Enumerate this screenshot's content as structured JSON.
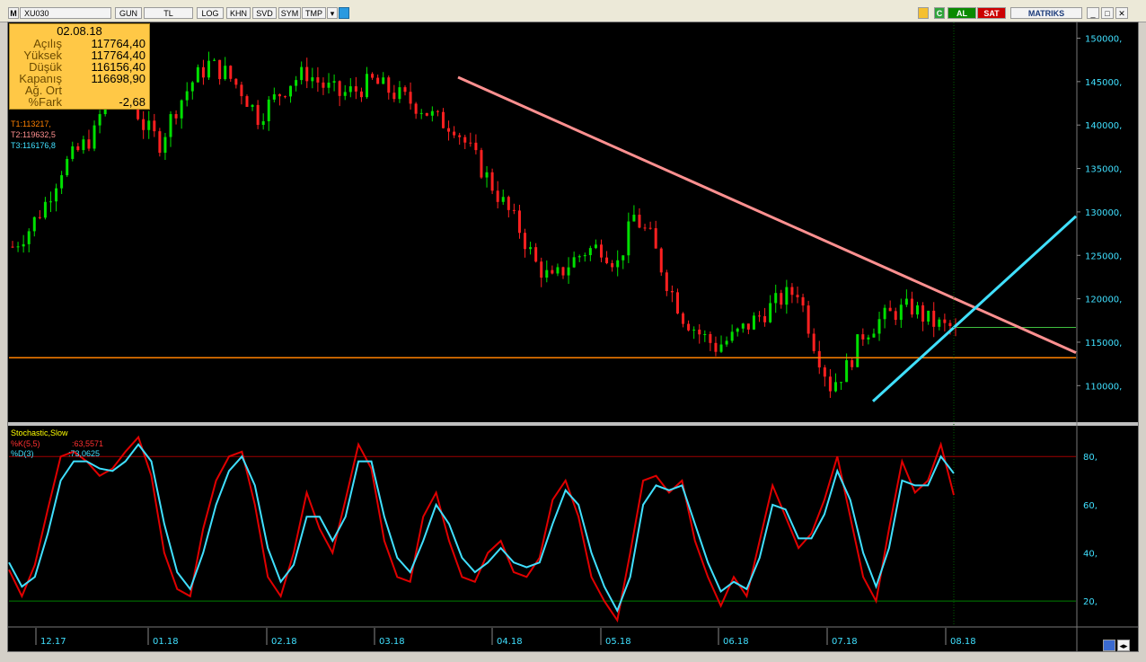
{
  "toolbar": {
    "app_logo": "M",
    "symbol": "XU030",
    "buttons": [
      "GUN",
      "TL",
      "LOG",
      "KHN",
      "SVD",
      "SYM",
      "TMP"
    ],
    "buy": "AL",
    "sell": "SAT",
    "brand": "MATRIKS",
    "colors": {
      "buy": "#008000",
      "sell": "#cc0000"
    }
  },
  "info": {
    "date": "02.08.18",
    "rows": [
      {
        "k": "Açılış",
        "v": "117764,40"
      },
      {
        "k": "Yüksek",
        "v": "117764,40"
      },
      {
        "k": "Düşük",
        "v": "116156,40"
      },
      {
        "k": "Kapanış",
        "v": "116698,90"
      },
      {
        "k": "Ağ. Ort",
        "v": ""
      },
      {
        "k": "%Fark",
        "v": "-2,68"
      }
    ]
  },
  "trendlines": {
    "t1": "T1:113217,",
    "t2": "T2:119632,5",
    "t3": "T3:116176,8",
    "colors": {
      "t1": "#ff8000",
      "t2": "#ff9090",
      "t3": "#40e0ff"
    }
  },
  "stochastic": {
    "title": "Stochastic,Slow",
    "k_label": "%K(5,5)",
    "k_value": ":63,5571",
    "d_label": "%D(3)",
    "d_value": ":73,0625",
    "colors": {
      "k": "#e00000",
      "d": "#40e0ff"
    }
  },
  "chart_data": {
    "type": "candlestick",
    "x_ticks": [
      "12.17",
      "01.18",
      "02.18",
      "03.18",
      "04.18",
      "05.18",
      "06.18",
      "07.18",
      "08.18"
    ],
    "y_ticks": [
      "150000,",
      "145000,",
      "140000,",
      "135000,",
      "130000,",
      "125000,",
      "120000,",
      "115000,",
      "110000,"
    ],
    "ylim": [
      106000,
      151500
    ],
    "horizontal_lines": [
      113217,
      116698.9
    ],
    "close_series": [
      126000,
      128000,
      131000,
      135000,
      137000,
      139000,
      145000,
      144000,
      140000,
      138000,
      142000,
      145000,
      147000,
      146000,
      144000,
      141000,
      143000,
      145000,
      146000,
      144500,
      143500,
      144000,
      145000,
      144000,
      143000,
      142000,
      140500,
      140000,
      137000,
      134000,
      131000,
      128000,
      124000,
      122000,
      124000,
      125500,
      126000,
      124000,
      129500,
      127000,
      122000,
      118000,
      116000,
      114500,
      115500,
      117000,
      118500,
      120000,
      121000,
      115000,
      110000,
      112000,
      116000,
      117500,
      118500,
      119000,
      117500,
      116699
    ],
    "stochastic_k": [
      33,
      22,
      35,
      58,
      80,
      82,
      78,
      72,
      75,
      82,
      88,
      72,
      40,
      25,
      22,
      50,
      70,
      80,
      82,
      60,
      30,
      22,
      40,
      65,
      50,
      40,
      62,
      85,
      75,
      45,
      30,
      28,
      55,
      65,
      45,
      30,
      28,
      40,
      45,
      32,
      30,
      38,
      62,
      70,
      55,
      30,
      20,
      12,
      40,
      70,
      72,
      65,
      70,
      45,
      30,
      18,
      30,
      22,
      45,
      68,
      55,
      42,
      48,
      62,
      80,
      55,
      30,
      20,
      50,
      78,
      65,
      70,
      85,
      64
    ],
    "stochastic_d": [
      36,
      26,
      30,
      48,
      70,
      78,
      78,
      75,
      74,
      78,
      85,
      78,
      52,
      32,
      25,
      40,
      60,
      74,
      80,
      68,
      42,
      28,
      35,
      55,
      55,
      45,
      55,
      78,
      78,
      55,
      38,
      32,
      45,
      60,
      52,
      38,
      32,
      36,
      42,
      36,
      34,
      36,
      52,
      66,
      60,
      40,
      26,
      16,
      30,
      60,
      68,
      66,
      68,
      52,
      36,
      24,
      28,
      25,
      38,
      60,
      58,
      46,
      46,
      56,
      74,
      62,
      40,
      26,
      42,
      70,
      68,
      68,
      80,
      73
    ],
    "stochastic_ylim": [
      10,
      92
    ],
    "stochastic_ticks": [
      "80,",
      "60,",
      "40,",
      "20,"
    ]
  }
}
